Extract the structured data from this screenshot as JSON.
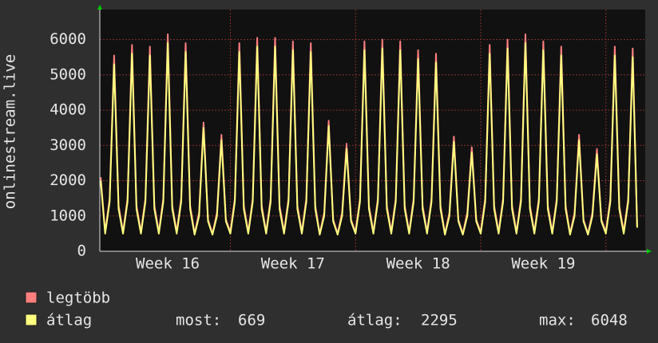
{
  "chart_data": {
    "type": "line",
    "y_axis_label": "onlinestream.live",
    "ylim": [
      0,
      6850
    ],
    "yticks": [
      0,
      1000,
      2000,
      3000,
      4000,
      5000,
      6000
    ],
    "xlim": [
      -0.2,
      121.8
    ],
    "xticks": [
      {
        "value": 15,
        "label": "Week 16"
      },
      {
        "value": 43,
        "label": "Week 17"
      },
      {
        "value": 71,
        "label": "Week 18"
      },
      {
        "value": 99,
        "label": "Week 19"
      }
    ],
    "xgrid": [
      29,
      57,
      85,
      113
    ],
    "grid": true,
    "series": [
      {
        "name": "legtöbb",
        "color": "#ff7f7f",
        "values": [
          2100,
          550,
          1500,
          5550,
          1300,
          550,
          1500,
          5850,
          1300,
          550,
          1500,
          5800,
          1300,
          550,
          1500,
          6150,
          1300,
          550,
          1500,
          5900,
          1300,
          500,
          1100,
          3650,
          900,
          500,
          1100,
          3300,
          900,
          550,
          1500,
          5900,
          1300,
          550,
          1500,
          6050,
          1300,
          550,
          1500,
          6050,
          1300,
          550,
          1500,
          5950,
          1300,
          550,
          1500,
          5900,
          1300,
          500,
          1100,
          3700,
          900,
          500,
          1100,
          3050,
          900,
          550,
          1500,
          5950,
          1300,
          550,
          1500,
          6000,
          1300,
          550,
          1500,
          5950,
          1300,
          550,
          1500,
          5700,
          1300,
          550,
          1500,
          5600,
          1300,
          500,
          1100,
          3250,
          900,
          500,
          1100,
          2950,
          900,
          550,
          1500,
          5850,
          1300,
          550,
          1500,
          6000,
          1300,
          550,
          1500,
          6150,
          1300,
          550,
          1500,
          5950,
          1300,
          550,
          1500,
          5800,
          1300,
          500,
          1100,
          3300,
          900,
          500,
          1100,
          2900,
          900,
          550,
          1500,
          5800,
          1300,
          550,
          1500,
          5750,
          700
        ]
      },
      {
        "name": "átlag",
        "color": "#ffff80",
        "values": [
          2000,
          500,
          1400,
          5300,
          1200,
          500,
          1400,
          5600,
          1200,
          500,
          1400,
          5550,
          1200,
          500,
          1400,
          5900,
          1200,
          500,
          1400,
          5650,
          1200,
          470,
          1000,
          3500,
          850,
          470,
          1000,
          3150,
          850,
          500,
          1400,
          5650,
          1200,
          500,
          1400,
          5800,
          1200,
          500,
          1400,
          5800,
          1200,
          500,
          1400,
          5700,
          1200,
          500,
          1400,
          5650,
          1200,
          470,
          1000,
          3550,
          850,
          470,
          1000,
          2900,
          850,
          500,
          1400,
          5700,
          1200,
          500,
          1400,
          5750,
          1200,
          500,
          1400,
          5700,
          1200,
          500,
          1400,
          5450,
          1200,
          500,
          1400,
          5350,
          1200,
          470,
          1000,
          3100,
          850,
          470,
          1000,
          2800,
          850,
          500,
          1400,
          5600,
          1200,
          500,
          1400,
          5750,
          1200,
          500,
          1400,
          5900,
          1200,
          500,
          1400,
          5700,
          1200,
          500,
          1400,
          5550,
          1200,
          470,
          1000,
          3150,
          850,
          470,
          1000,
          2750,
          850,
          500,
          1400,
          5550,
          1200,
          500,
          1400,
          5500,
          669
        ]
      }
    ],
    "legend_stats": [
      {
        "label": "most:",
        "value": 669
      },
      {
        "label": "átlag:",
        "value": 2295
      },
      {
        "label": "max:",
        "value": 6048
      }
    ]
  }
}
